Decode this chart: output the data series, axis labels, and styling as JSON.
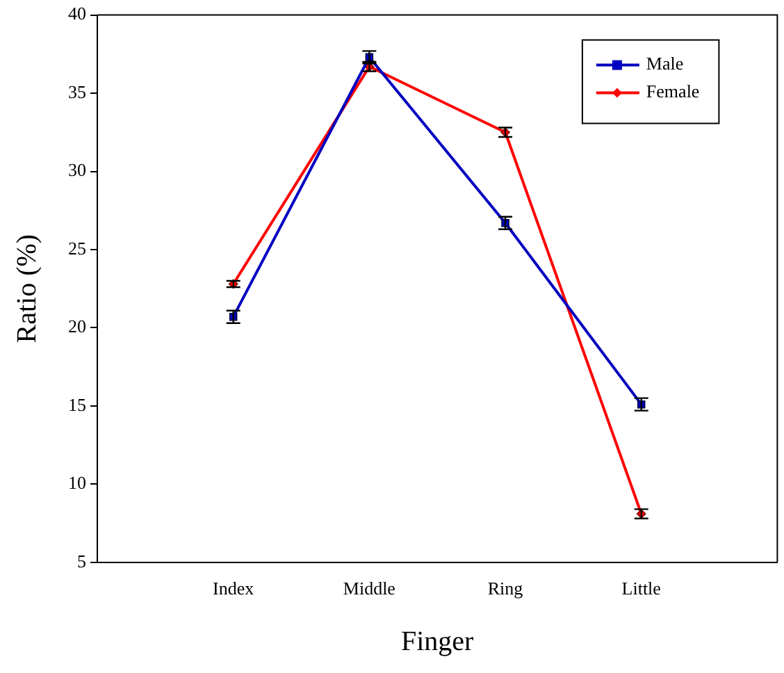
{
  "chart_data": {
    "type": "line",
    "xlabel": "Finger",
    "ylabel": "Ratio (%)",
    "categories": [
      "Index",
      "Middle",
      "Ring",
      "Little"
    ],
    "series": [
      {
        "name": "Male",
        "color": "#0000c0",
        "marker": "square",
        "values": [
          20.7,
          37.3,
          26.7,
          15.1
        ],
        "errors": [
          0.4,
          0.4,
          0.4,
          0.4
        ]
      },
      {
        "name": "Female",
        "color": "#ff0000",
        "marker": "diamond",
        "values": [
          22.8,
          36.7,
          32.5,
          8.1
        ],
        "errors": [
          0.2,
          0.3,
          0.3,
          0.3
        ]
      }
    ],
    "ylim": [
      5,
      40
    ],
    "yticks": [
      5,
      10,
      15,
      20,
      25,
      30,
      35,
      40
    ],
    "grid": false,
    "legend": "top right",
    "line_style": "solid"
  }
}
